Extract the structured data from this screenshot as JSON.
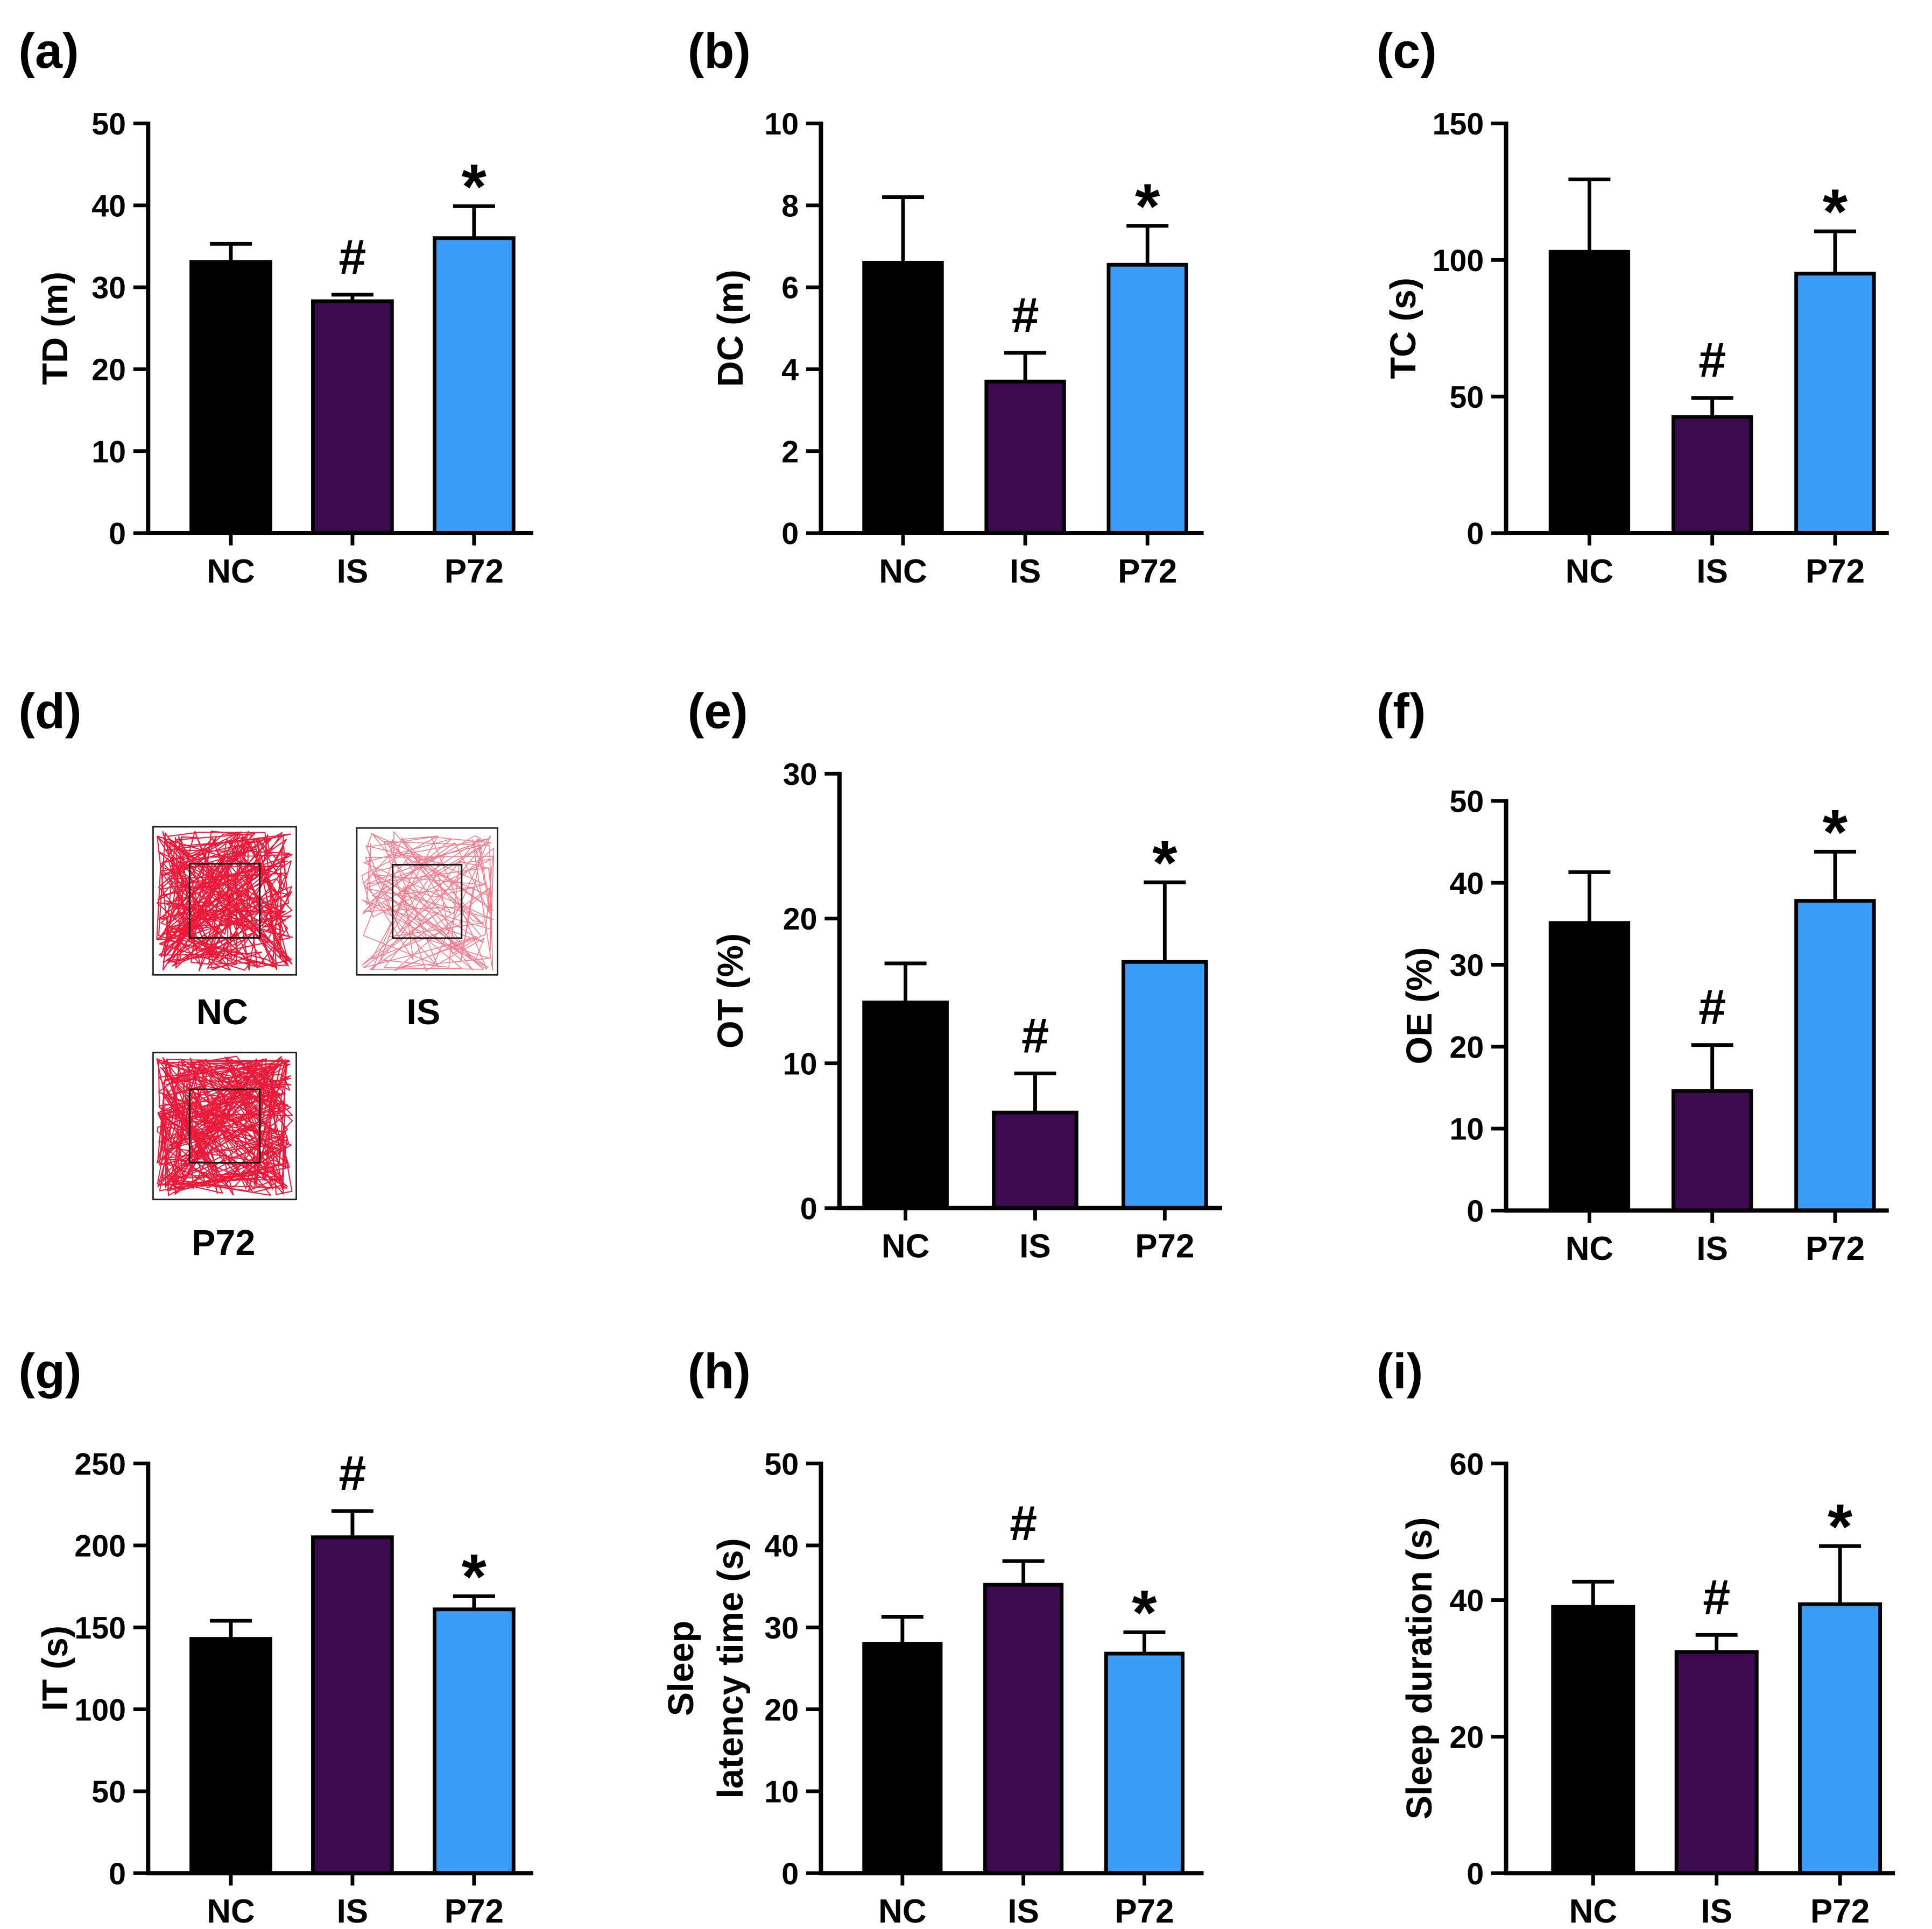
{
  "colors": {
    "NC": "#000000",
    "IS": "#3d0a50",
    "P72": "#3a9cf6",
    "axis": "#000000",
    "trajectory_dense": "#ec1a3a",
    "trajectory_light": "#f27d8e"
  },
  "trajectory_panel": {
    "label": "(d)",
    "groups": [
      "NC",
      "IS",
      "P72"
    ]
  },
  "chart_data": [
    {
      "panel": "(a)",
      "type": "bar",
      "categories": [
        "NC",
        "IS",
        "P72"
      ],
      "values": [
        33.1,
        28.3,
        36.0
      ],
      "errors": [
        2.2,
        0.8,
        3.9
      ],
      "annotations": [
        null,
        "#",
        "*"
      ],
      "ylabel": [
        "TD (m)"
      ],
      "ylim": [
        0,
        50
      ],
      "yticks": [
        0,
        10,
        20,
        30,
        40,
        50
      ]
    },
    {
      "panel": "(b)",
      "type": "bar",
      "categories": [
        "NC",
        "IS",
        "P72"
      ],
      "values": [
        6.6,
        3.7,
        6.55
      ],
      "errors": [
        1.6,
        0.7,
        0.95
      ],
      "annotations": [
        null,
        "#",
        "*"
      ],
      "ylabel": [
        "DC (m)"
      ],
      "ylim": [
        0,
        10
      ],
      "yticks": [
        0,
        2,
        4,
        6,
        8,
        10
      ]
    },
    {
      "panel": "(c)",
      "type": "bar",
      "categories": [
        "NC",
        "IS",
        "P72"
      ],
      "values": [
        103,
        42.5,
        95
      ],
      "errors": [
        26.5,
        7,
        15.5
      ],
      "annotations": [
        null,
        "#",
        "*"
      ],
      "ylabel": [
        "TC (s)"
      ],
      "ylim": [
        0,
        150
      ],
      "yticks": [
        0,
        50,
        100,
        150
      ]
    },
    {
      "panel": "(e)",
      "type": "bar",
      "categories": [
        "NC",
        "IS",
        "P72"
      ],
      "values": [
        14.2,
        6.6,
        17.0
      ],
      "errors": [
        2.7,
        2.7,
        5.5
      ],
      "annotations": [
        null,
        "#",
        "*"
      ],
      "ylabel": [
        "OT (%)"
      ],
      "ylim": [
        0,
        30
      ],
      "yticks": [
        0,
        10,
        20,
        30
      ]
    },
    {
      "panel": "(f)",
      "type": "bar",
      "categories": [
        "NC",
        "IS",
        "P72"
      ],
      "values": [
        35.1,
        14.6,
        37.8
      ],
      "errors": [
        6.2,
        5.6,
        6.0
      ],
      "annotations": [
        null,
        "#",
        "*"
      ],
      "ylabel": [
        "OE (%)"
      ],
      "ylim": [
        0,
        50
      ],
      "yticks": [
        0,
        10,
        20,
        30,
        40,
        50
      ]
    },
    {
      "panel": "(g)",
      "type": "bar",
      "categories": [
        "NC",
        "IS",
        "P72"
      ],
      "values": [
        143,
        205,
        161
      ],
      "errors": [
        11,
        16,
        8
      ],
      "annotations": [
        null,
        "#",
        "*"
      ],
      "ylabel": [
        "IT (s)"
      ],
      "ylim": [
        0,
        250
      ],
      "yticks": [
        0,
        50,
        100,
        150,
        200,
        250
      ]
    },
    {
      "panel": "(h)",
      "type": "bar",
      "categories": [
        "NC",
        "IS",
        "P72"
      ],
      "values": [
        28.0,
        35.2,
        26.8
      ],
      "errors": [
        3.3,
        2.9,
        2.6
      ],
      "annotations": [
        null,
        "#",
        "*"
      ],
      "ylabel": [
        "Sleep",
        "latency time (s)"
      ],
      "ylim": [
        0,
        50
      ],
      "yticks": [
        0,
        10,
        20,
        30,
        40,
        50
      ]
    },
    {
      "panel": "(i)",
      "type": "bar",
      "categories": [
        "NC",
        "IS",
        "P72"
      ],
      "values": [
        39.0,
        32.4,
        39.4
      ],
      "errors": [
        3.7,
        2.5,
        8.5
      ],
      "annotations": [
        null,
        "#",
        "*"
      ],
      "ylabel": [
        "Sleep duration (s)"
      ],
      "ylim": [
        0,
        60
      ],
      "yticks": [
        0,
        20,
        40,
        60
      ]
    }
  ]
}
